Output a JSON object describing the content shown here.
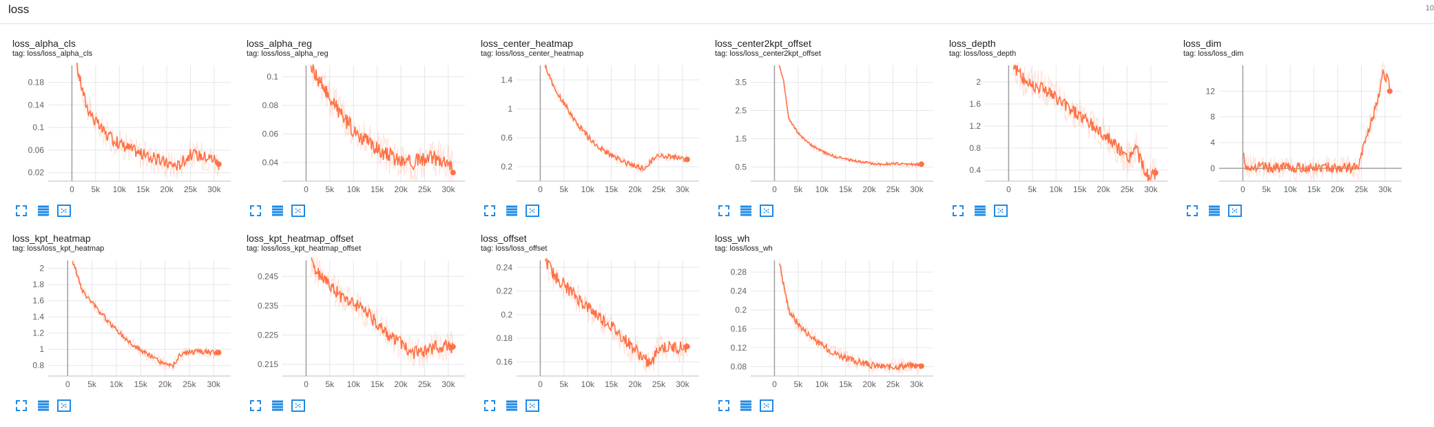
{
  "section": {
    "title": "loss",
    "count": "10"
  },
  "colors": {
    "series": "#ff7043",
    "raw": "#ff7043",
    "grid": "#e6e6e6",
    "axis": "#9e9e9e",
    "zero": "#9e9e9e",
    "icon": "#1e88e5"
  },
  "buttons": {
    "fullscreen_icon": "expand-icon",
    "log_icon": "lines-icon",
    "fit_icon": "fit-domain-icon"
  },
  "chart_data": [
    {
      "type": "line",
      "title": "loss_alpha_cls",
      "tag": "tag: loss/loss_alpha_cls",
      "xlim": [
        -5000,
        33500
      ],
      "ylim": [
        0.005,
        0.21
      ],
      "yticks": [
        0.02,
        0.06,
        0.1,
        0.14,
        0.18
      ],
      "ytick_labels": [
        "0.02",
        "0.06",
        "0.1",
        "0.14",
        "0.18"
      ],
      "xticks": [
        0,
        5000,
        10000,
        15000,
        20000,
        25000,
        30000
      ],
      "xtick_labels": [
        "0",
        "5k",
        "10k",
        "15k",
        "20k",
        "25k",
        "30k"
      ],
      "x": [
        1000,
        3000,
        5000,
        7500,
        10000,
        12500,
        15000,
        17500,
        20000,
        22500,
        23500,
        25000,
        27500,
        30000,
        31000
      ],
      "y": [
        0.21,
        0.14,
        0.11,
        0.085,
        0.072,
        0.062,
        0.052,
        0.045,
        0.037,
        0.032,
        0.042,
        0.052,
        0.05,
        0.045,
        0.035
      ],
      "noise": 0.012
    },
    {
      "type": "line",
      "title": "loss_alpha_reg",
      "tag": "tag: loss/loss_alpha_reg",
      "xlim": [
        -5000,
        33500
      ],
      "ylim": [
        0.027,
        0.108
      ],
      "yticks": [
        0.04,
        0.06,
        0.08,
        0.1
      ],
      "ytick_labels": [
        "0.04",
        "0.06",
        "0.08",
        "0.1"
      ],
      "xticks": [
        0,
        5000,
        10000,
        15000,
        20000,
        25000,
        30000
      ],
      "xtick_labels": [
        "0",
        "5k",
        "10k",
        "15k",
        "20k",
        "25k",
        "30k"
      ],
      "x": [
        1000,
        3000,
        5000,
        7500,
        10000,
        12500,
        15000,
        17500,
        20000,
        22500,
        25000,
        27500,
        30000,
        31000
      ],
      "y": [
        0.108,
        0.096,
        0.085,
        0.073,
        0.063,
        0.056,
        0.049,
        0.045,
        0.041,
        0.04,
        0.042,
        0.043,
        0.042,
        0.033
      ],
      "noise": 0.006
    },
    {
      "type": "line",
      "title": "loss_center_heatmap",
      "tag": "tag: loss/loss_center_heatmap",
      "xlim": [
        -5000,
        33500
      ],
      "ylim": [
        0.0,
        1.6
      ],
      "yticks": [
        0.2,
        0.6,
        1,
        1.4
      ],
      "ytick_labels": [
        "0.2",
        "0.6",
        "1",
        "1.4"
      ],
      "xticks": [
        0,
        5000,
        10000,
        15000,
        20000,
        25000,
        30000
      ],
      "xtick_labels": [
        "0",
        "5k",
        "10k",
        "15k",
        "20k",
        "25k",
        "30k"
      ],
      "x": [
        1000,
        3000,
        5000,
        7500,
        10000,
        12500,
        15000,
        17500,
        20000,
        22000,
        23500,
        25000,
        27500,
        30000,
        31000
      ],
      "y": [
        1.6,
        1.28,
        1.08,
        0.82,
        0.62,
        0.46,
        0.36,
        0.27,
        0.2,
        0.17,
        0.28,
        0.36,
        0.34,
        0.31,
        0.3
      ],
      "noise": 0.04
    },
    {
      "type": "line",
      "title": "loss_center2kpt_offset",
      "tag": "tag: loss/loss_center2kpt_offset",
      "xlim": [
        -5000,
        33500
      ],
      "ylim": [
        0.0,
        4.1
      ],
      "yticks": [
        0.5,
        1.5,
        2.5,
        3.5
      ],
      "ytick_labels": [
        "0.5",
        "1.5",
        "2.5",
        "3.5"
      ],
      "xticks": [
        0,
        5000,
        10000,
        15000,
        20000,
        25000,
        30000
      ],
      "xtick_labels": [
        "0",
        "5k",
        "10k",
        "15k",
        "20k",
        "25k",
        "30k"
      ],
      "x": [
        1000,
        2000,
        3000,
        5000,
        7500,
        10000,
        12500,
        15000,
        17500,
        20000,
        22500,
        25000,
        27500,
        30000,
        31000
      ],
      "y": [
        4.1,
        3.5,
        2.2,
        1.7,
        1.3,
        1.05,
        0.88,
        0.78,
        0.7,
        0.64,
        0.6,
        0.62,
        0.6,
        0.6,
        0.6
      ],
      "noise": 0.05
    },
    {
      "type": "line",
      "title": "loss_depth",
      "tag": "tag: loss/loss_depth",
      "xlim": [
        -5000,
        33500
      ],
      "ylim": [
        0.2,
        2.3
      ],
      "yticks": [
        0.4,
        0.8,
        1.2,
        1.6,
        2
      ],
      "ytick_labels": [
        "0.4",
        "0.8",
        "1.2",
        "1.6",
        "2"
      ],
      "xticks": [
        0,
        5000,
        10000,
        15000,
        20000,
        25000,
        30000
      ],
      "xtick_labels": [
        "0",
        "5k",
        "10k",
        "15k",
        "20k",
        "25k",
        "30k"
      ],
      "x": [
        1000,
        3000,
        5000,
        7500,
        10000,
        12500,
        15000,
        17500,
        20000,
        22500,
        25000,
        27000,
        28500,
        30000,
        31000
      ],
      "y": [
        2.3,
        2.05,
        1.95,
        1.9,
        1.7,
        1.55,
        1.4,
        1.22,
        1.05,
        0.85,
        0.6,
        0.8,
        0.4,
        0.25,
        0.35
      ],
      "noise": 0.14
    },
    {
      "type": "line",
      "title": "loss_dim",
      "tag": "tag: loss/loss_dim",
      "xlim": [
        -5000,
        33500
      ],
      "ylim": [
        -2,
        16
      ],
      "yticks": [
        0,
        4,
        8,
        12
      ],
      "ytick_labels": [
        "0",
        "4",
        "8",
        "12"
      ],
      "xticks": [
        0,
        5000,
        10000,
        15000,
        20000,
        25000,
        30000
      ],
      "xtick_labels": [
        "0",
        "5k",
        "10k",
        "15k",
        "20k",
        "25k",
        "30k"
      ],
      "x": [
        200,
        500,
        1000,
        3000,
        5000,
        10000,
        15000,
        20000,
        23000,
        24500,
        25500,
        27000,
        28500,
        29500,
        30500,
        31000
      ],
      "y": [
        2,
        0.5,
        0.3,
        0.2,
        0.15,
        0.1,
        0.1,
        0.1,
        0.1,
        0.2,
        3.5,
        7,
        10.5,
        15,
        14,
        12
      ],
      "noise": 0.9,
      "zero_line": true
    },
    {
      "type": "line",
      "title": "loss_kpt_heatmap",
      "tag": "tag: loss/loss_kpt_heatmap",
      "xlim": [
        -4000,
        33500
      ],
      "ylim": [
        0.67,
        2.1
      ],
      "yticks": [
        0.8,
        1,
        1.2,
        1.4,
        1.6,
        1.8,
        2
      ],
      "ytick_labels": [
        "0.8",
        "1",
        "1.2",
        "1.4",
        "1.6",
        "1.8",
        "2"
      ],
      "xticks": [
        0,
        5000,
        10000,
        15000,
        20000,
        25000,
        30000
      ],
      "xtick_labels": [
        "0",
        "5k",
        "10k",
        "15k",
        "20k",
        "25k",
        "30k"
      ],
      "x": [
        1000,
        3000,
        5000,
        7500,
        10000,
        12500,
        15000,
        17500,
        20000,
        21500,
        23000,
        25000,
        27500,
        30000,
        31000
      ],
      "y": [
        2.1,
        1.72,
        1.58,
        1.4,
        1.24,
        1.1,
        0.99,
        0.9,
        0.82,
        0.78,
        0.92,
        0.97,
        0.97,
        0.96,
        0.96
      ],
      "noise": 0.035
    },
    {
      "type": "line",
      "title": "loss_kpt_heatmap_offset",
      "tag": "tag: loss/loss_kpt_heatmap_offset",
      "xlim": [
        -5000,
        33500
      ],
      "ylim": [
        0.211,
        0.2505
      ],
      "yticks": [
        0.215,
        0.225,
        0.235,
        0.245
      ],
      "ytick_labels": [
        "0.215",
        "0.225",
        "0.235",
        "0.245"
      ],
      "xticks": [
        0,
        5000,
        10000,
        15000,
        20000,
        25000,
        30000
      ],
      "xtick_labels": [
        "0",
        "5k",
        "10k",
        "15k",
        "20k",
        "25k",
        "30k"
      ],
      "x": [
        1000,
        3000,
        5000,
        7500,
        10000,
        12500,
        15000,
        17500,
        20000,
        22500,
        25000,
        27500,
        30000,
        31000
      ],
      "y": [
        0.25,
        0.245,
        0.242,
        0.238,
        0.236,
        0.233,
        0.229,
        0.225,
        0.222,
        0.219,
        0.219,
        0.221,
        0.221,
        0.221
      ],
      "noise": 0.0025
    },
    {
      "type": "line",
      "title": "loss_offset",
      "tag": "tag: loss/loss_offset",
      "xlim": [
        -5000,
        33500
      ],
      "ylim": [
        0.148,
        0.246
      ],
      "yticks": [
        0.16,
        0.18,
        0.2,
        0.22,
        0.24
      ],
      "ytick_labels": [
        "0.16",
        "0.18",
        "0.2",
        "0.22",
        "0.24"
      ],
      "xticks": [
        0,
        5000,
        10000,
        15000,
        20000,
        25000,
        30000
      ],
      "xtick_labels": [
        "0",
        "5k",
        "10k",
        "15k",
        "20k",
        "25k",
        "30k"
      ],
      "x": [
        1000,
        3000,
        5000,
        7500,
        10000,
        12500,
        15000,
        17500,
        20000,
        22000,
        23500,
        25000,
        27500,
        30000,
        31000
      ],
      "y": [
        0.246,
        0.233,
        0.225,
        0.215,
        0.206,
        0.198,
        0.19,
        0.18,
        0.17,
        0.162,
        0.158,
        0.172,
        0.172,
        0.172,
        0.173
      ],
      "noise": 0.006
    },
    {
      "type": "line",
      "title": "loss_wh",
      "tag": "tag: loss/loss_wh",
      "xlim": [
        -5000,
        33500
      ],
      "ylim": [
        0.06,
        0.305
      ],
      "yticks": [
        0.08,
        0.12,
        0.16,
        0.2,
        0.24,
        0.28
      ],
      "ytick_labels": [
        "0.08",
        "0.12",
        "0.16",
        "0.2",
        "0.24",
        "0.28"
      ],
      "xticks": [
        0,
        5000,
        10000,
        15000,
        20000,
        25000,
        30000
      ],
      "xtick_labels": [
        "0",
        "5k",
        "10k",
        "15k",
        "20k",
        "25k",
        "30k"
      ],
      "x": [
        1000,
        2000,
        3000,
        5000,
        7500,
        10000,
        12500,
        15000,
        17500,
        20000,
        22500,
        25000,
        27500,
        30000,
        31000
      ],
      "y": [
        0.305,
        0.25,
        0.2,
        0.17,
        0.145,
        0.125,
        0.11,
        0.098,
        0.09,
        0.084,
        0.08,
        0.08,
        0.082,
        0.082,
        0.081
      ],
      "noise": 0.008
    }
  ]
}
